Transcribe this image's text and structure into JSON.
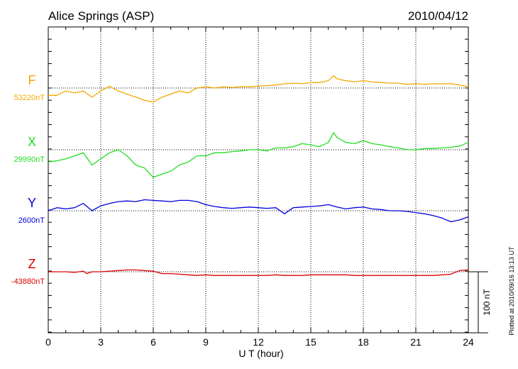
{
  "chart_data": {
    "type": "line",
    "title": "Alice Springs (ASP)",
    "date": "2010/04/12",
    "xlabel": "U T (hour)",
    "xlim": [
      0,
      24
    ],
    "xticks": [
      "0",
      "3",
      "6",
      "9",
      "12",
      "15",
      "18",
      "21",
      "24"
    ],
    "scale_label": "100 nT",
    "footer": "Plotted at 2010/09/16 13:13 UT",
    "grid": true,
    "series": [
      {
        "name": "F",
        "baseline_label": "53220nT",
        "color": "#f5a800",
        "x": [
          0,
          0.5,
          1,
          1.5,
          2,
          2.5,
          3,
          3.5,
          4,
          4.5,
          5,
          5.5,
          6,
          6.5,
          7,
          7.5,
          8,
          8.5,
          9,
          9.5,
          10,
          10.5,
          11,
          11.5,
          12,
          12.5,
          13,
          13.5,
          14,
          14.5,
          15,
          15.5,
          16,
          16.3,
          16.5,
          17,
          17.5,
          18,
          18.5,
          19,
          19.5,
          20,
          20.5,
          21,
          21.5,
          22,
          22.5,
          23,
          23.5,
          24
        ],
        "y": [
          -12,
          -12,
          -5,
          -8,
          -5,
          -15,
          -5,
          3,
          -5,
          -10,
          -15,
          -20,
          -23,
          -15,
          -10,
          -5,
          -8,
          0,
          2,
          0,
          2,
          1,
          2,
          2,
          3,
          4,
          5,
          7,
          8,
          7,
          9,
          9,
          12,
          20,
          15,
          12,
          10,
          12,
          10,
          9,
          8,
          8,
          6,
          7,
          6,
          7,
          7,
          7,
          5,
          2
        ]
      },
      {
        "name": "X",
        "baseline_label": "29990nT",
        "color": "#22dd22",
        "x": [
          0,
          0.5,
          1,
          1.5,
          2,
          2.5,
          3,
          3.5,
          4,
          4.5,
          5,
          5.5,
          6,
          6.5,
          7,
          7.5,
          8,
          8.5,
          9,
          9.5,
          10,
          10.5,
          11,
          11.5,
          12,
          12.5,
          13,
          13.5,
          14,
          14.5,
          15,
          15.5,
          16,
          16.3,
          16.5,
          17,
          17.5,
          18,
          18.5,
          19,
          19.5,
          20,
          20.5,
          21,
          21.5,
          22,
          22.5,
          23,
          23.5,
          24
        ],
        "y": [
          -20,
          -18,
          -15,
          -10,
          -5,
          -25,
          -15,
          -5,
          0,
          -10,
          -25,
          -30,
          -45,
          -40,
          -35,
          -25,
          -20,
          -10,
          -10,
          -5,
          -5,
          -3,
          -2,
          0,
          0,
          -2,
          3,
          3,
          5,
          10,
          8,
          5,
          12,
          28,
          20,
          12,
          10,
          15,
          10,
          8,
          5,
          3,
          0,
          0,
          2,
          2,
          3,
          4,
          6,
          12
        ]
      },
      {
        "name": "Y",
        "baseline_label": "2600nT",
        "color": "#0000dd",
        "x": [
          0,
          0.5,
          1,
          1.5,
          2,
          2.5,
          3,
          3.5,
          4,
          4.5,
          5,
          5.5,
          6,
          6.5,
          7,
          7.5,
          8,
          8.5,
          9,
          9.5,
          10,
          10.5,
          11,
          11.5,
          12,
          12.5,
          13,
          13.5,
          14,
          14.5,
          15,
          15.5,
          16,
          16.5,
          17,
          17.5,
          18,
          18.5,
          19,
          19.5,
          20,
          20.5,
          21,
          21.5,
          22,
          22.5,
          23,
          23.5,
          24
        ],
        "y": [
          0,
          5,
          3,
          5,
          12,
          0,
          8,
          12,
          15,
          16,
          15,
          18,
          17,
          16,
          15,
          17,
          17,
          15,
          10,
          7,
          5,
          4,
          5,
          6,
          5,
          4,
          5,
          -5,
          5,
          6,
          7,
          8,
          10,
          6,
          3,
          5,
          6,
          3,
          2,
          0,
          0,
          -1,
          -3,
          -5,
          -8,
          -12,
          -18,
          -15,
          -10
        ]
      },
      {
        "name": "Z",
        "baseline_label": "-43880nT",
        "color": "#dd0000",
        "x": [
          0,
          0.5,
          1,
          1.5,
          2,
          2.2,
          2.5,
          3,
          3.5,
          4,
          4.5,
          5,
          5.5,
          6,
          6.5,
          7,
          7.5,
          8,
          8.5,
          9,
          9.5,
          10,
          10.5,
          11,
          11.5,
          12,
          12.5,
          13,
          13.5,
          14,
          14.5,
          15,
          15.5,
          16,
          16.5,
          17,
          17.5,
          18,
          18.5,
          19,
          19.5,
          20,
          20.5,
          21,
          21.5,
          22,
          22.5,
          23,
          23.5,
          24
        ],
        "y": [
          0,
          0,
          0,
          -1,
          1,
          -3,
          0,
          0,
          1,
          2,
          3,
          3,
          2,
          1,
          -3,
          -3,
          -4,
          -5,
          -6,
          -5,
          -6,
          -6,
          -6,
          -6,
          -6,
          -6,
          -6,
          -5,
          -6,
          -6,
          -6,
          -5,
          -5,
          -5,
          -5,
          -5,
          -6,
          -6,
          -6,
          -6,
          -6,
          -6,
          -6,
          -6,
          -6,
          -6,
          -5,
          -4,
          2,
          3
        ]
      }
    ]
  }
}
